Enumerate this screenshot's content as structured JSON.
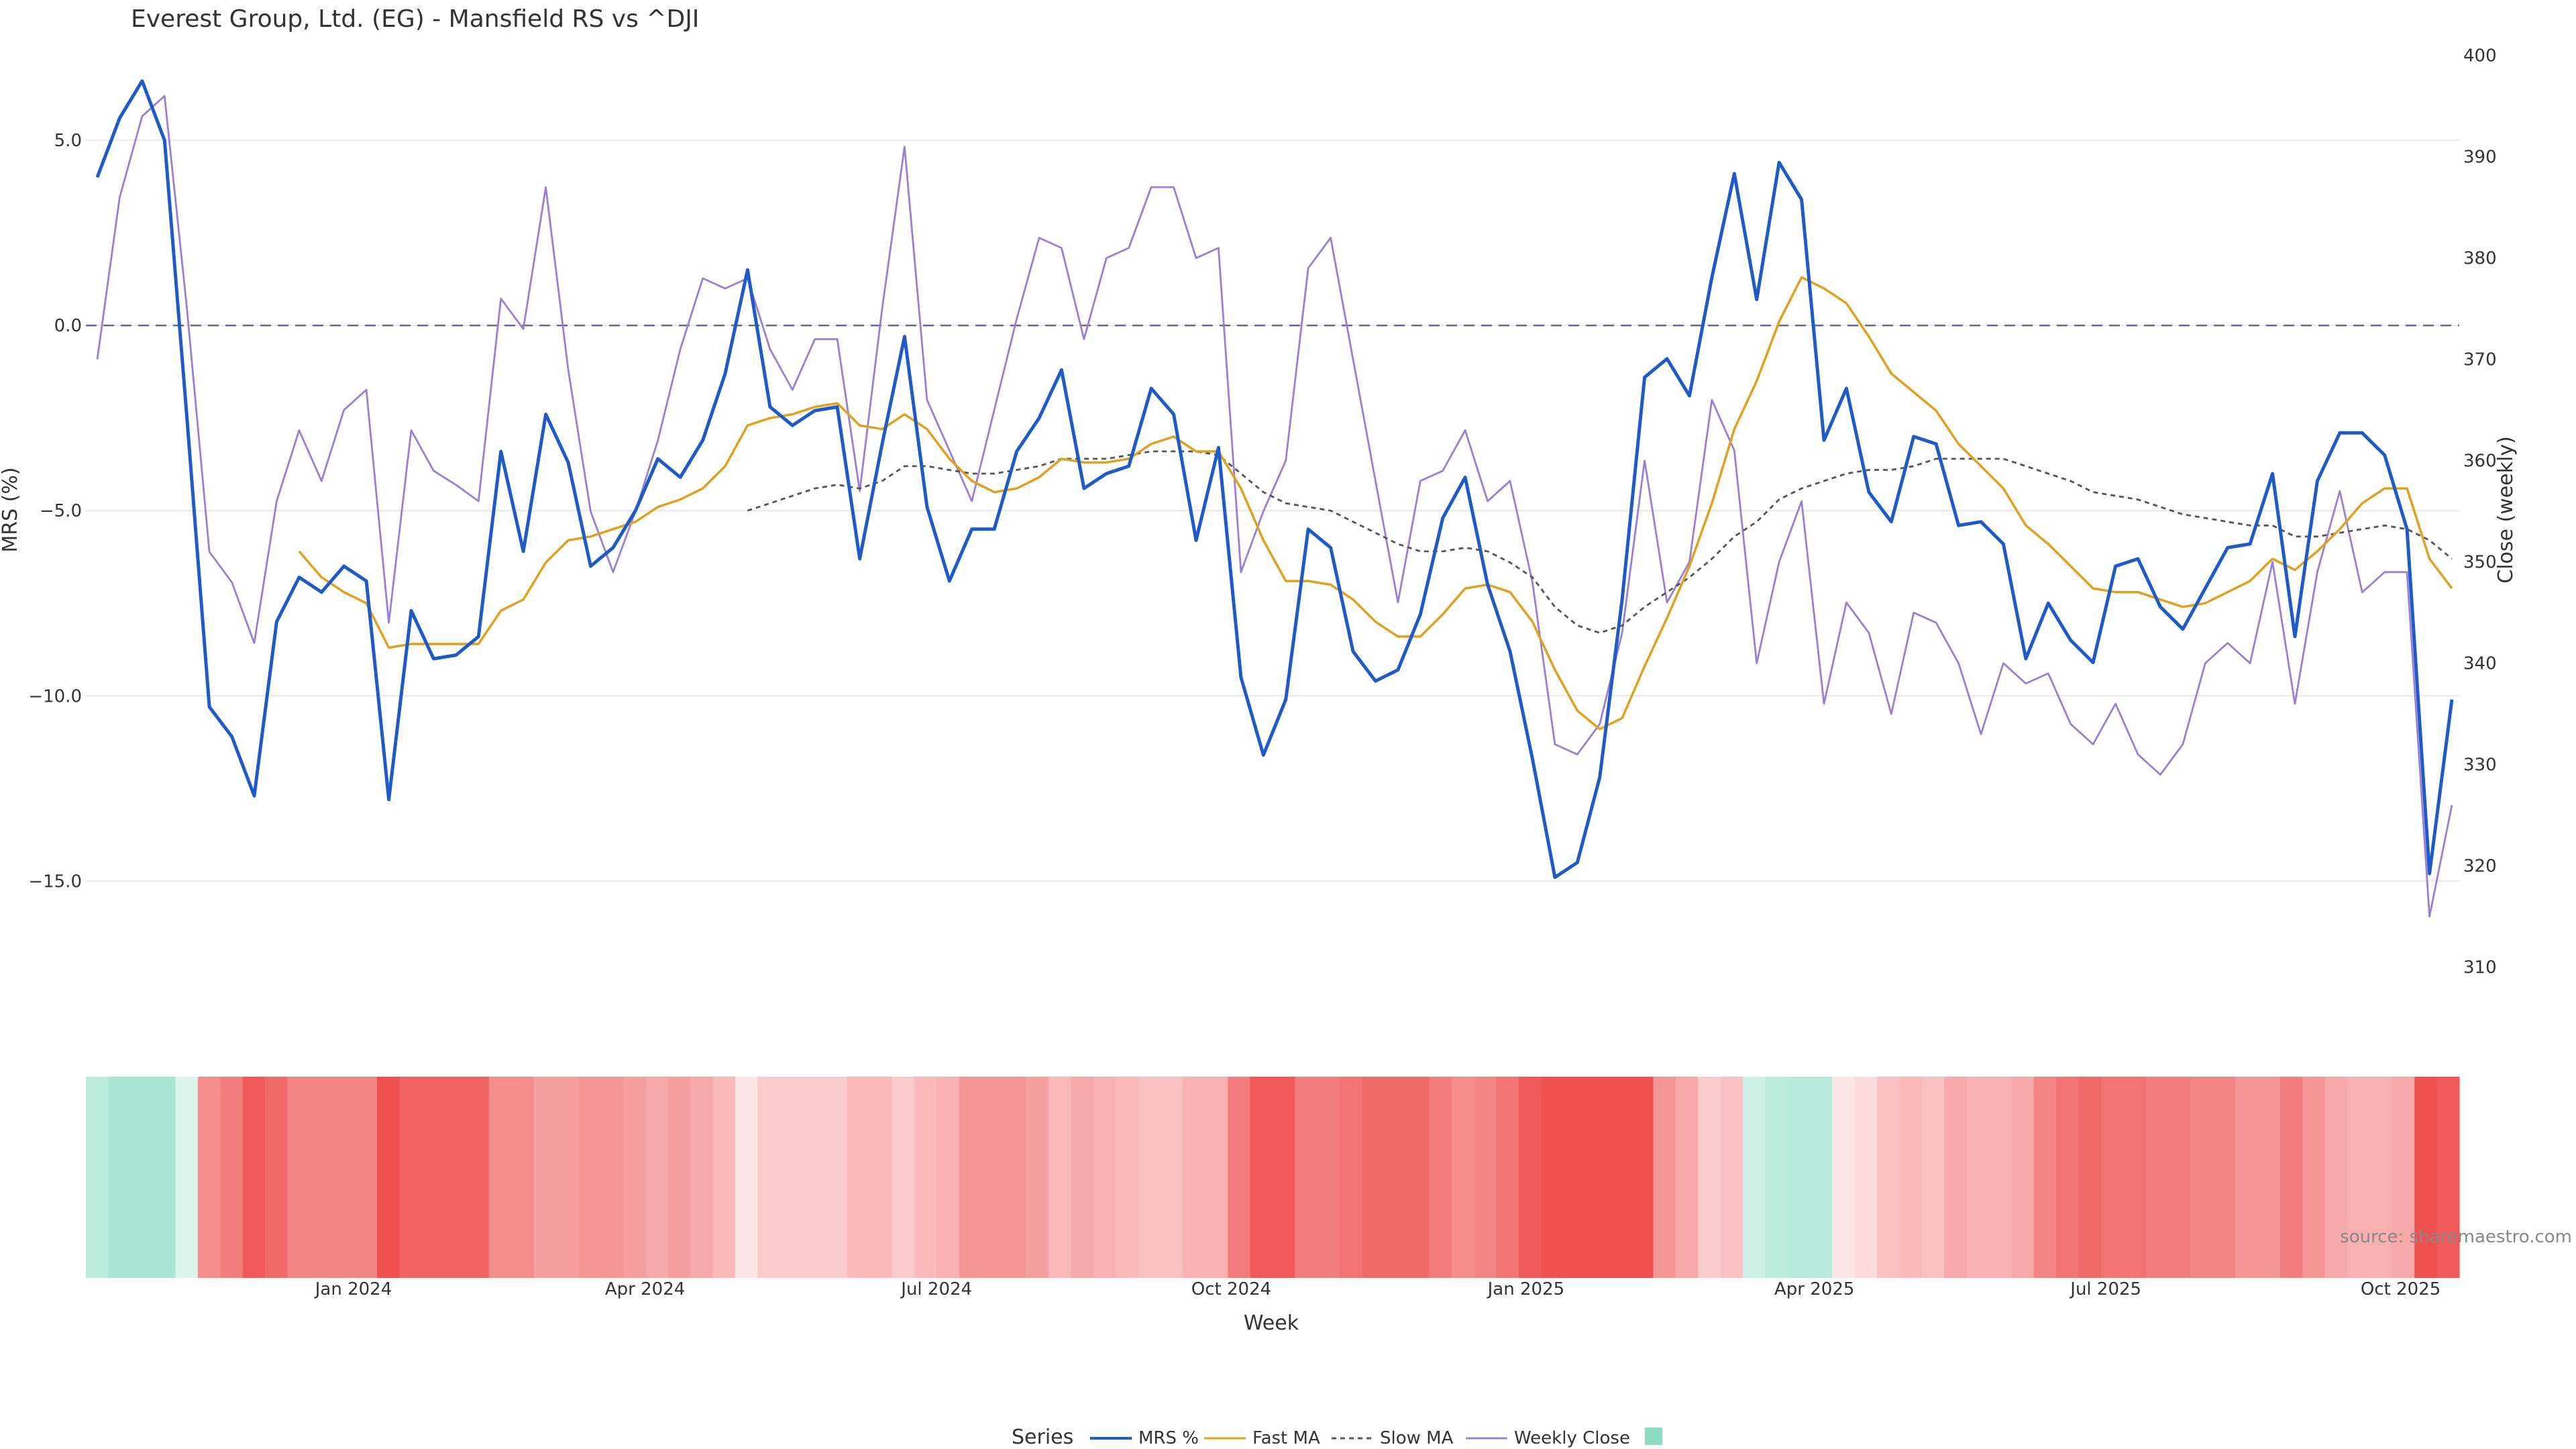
{
  "chart_data": {
    "type": "line",
    "title": "Everest Group, Ltd. (EG) - Mansfield RS vs ^DJI",
    "xlabel": "Week",
    "ylabel_left": "MRS (%)",
    "ylabel_right": "Close (weekly)",
    "source": "source: sharemaestro.com",
    "x_start": "2023-10-13",
    "x_step_days": 7,
    "x_ticks": [
      "Jan 2024",
      "Apr 2024",
      "Jul 2024",
      "Oct 2024",
      "Jan 2025",
      "Apr 2025",
      "Jul 2025",
      "Oct 2025"
    ],
    "y_left": {
      "ticks": [
        5.0,
        0.0,
        -5.0,
        -10.0,
        -15.0
      ],
      "labels": [
        "5.0",
        "0.0",
        "−5.0",
        "−10.0",
        "−15.0"
      ],
      "range": [
        -18.2,
        7.7
      ]
    },
    "y_right": {
      "ticks": [
        310,
        320,
        330,
        340,
        350,
        360,
        370,
        380,
        390,
        400
      ],
      "labels": [
        "310",
        "320",
        "330",
        "340",
        "350",
        "360",
        "370",
        "380",
        "390",
        "400"
      ],
      "range": [
        306.8,
        401.5
      ]
    },
    "zero_line": 0,
    "legend": {
      "title": "Series",
      "entries": [
        "MRS %",
        "Fast MA",
        "Slow MA",
        "Weekly Close"
      ],
      "position": "bottom-center"
    },
    "colors": {
      "mrs": "#1f5bc6",
      "fast": "#e0a020",
      "slow": "#555555",
      "close": "#9b7fd4",
      "zero": "#666688",
      "grid": "#e8e8e8",
      "heat_pos": "#6fd4b4",
      "heat_neg": "#ef5050"
    },
    "series": [
      {
        "name": "MRS %",
        "axis": "left",
        "values": [
          4.0,
          5.6,
          6.6,
          5.0,
          -2.5,
          -10.3,
          -11.1,
          -12.7,
          -8.0,
          -6.8,
          -7.2,
          -6.5,
          -6.9,
          -12.8,
          -7.7,
          -9.0,
          -8.9,
          -8.4,
          -3.4,
          -6.1,
          -2.4,
          -3.7,
          -6.5,
          -6.0,
          -5.0,
          -3.6,
          -4.1,
          -3.1,
          -1.3,
          1.5,
          -2.2,
          -2.7,
          -2.3,
          -2.2,
          -6.3,
          -3.2,
          -0.3,
          -4.9,
          -6.9,
          -5.5,
          -5.5,
          -3.4,
          -2.5,
          -1.2,
          -4.4,
          -4.0,
          -3.8,
          -1.7,
          -2.4,
          -5.8,
          -3.3,
          -9.5,
          -11.6,
          -10.1,
          -5.5,
          -6.0,
          -8.8,
          -9.6,
          -9.3,
          -7.8,
          -5.2,
          -4.1,
          -7.0,
          -8.8,
          -11.7,
          -14.9,
          -14.5,
          -12.2,
          -7.4,
          -1.4,
          -0.9,
          -1.9,
          1.3,
          4.1,
          0.7,
          4.4,
          3.4,
          -3.1,
          -1.7,
          -4.5,
          -5.3,
          -3.0,
          -3.2,
          -5.4,
          -5.3,
          -5.9,
          -9.0,
          -7.5,
          -8.5,
          -9.1,
          -6.5,
          -6.3,
          -7.6,
          -8.2,
          -7.1,
          -6.0,
          -5.9,
          -4.0,
          -8.4,
          -4.2,
          -2.9,
          -2.9,
          -3.5,
          -5.5,
          -14.8,
          -10.1
        ]
      },
      {
        "name": "Fast MA",
        "axis": "left",
        "values": [
          null,
          null,
          null,
          null,
          null,
          null,
          null,
          null,
          null,
          -6.1,
          -6.8,
          -7.2,
          -7.5,
          -8.7,
          -8.6,
          -8.6,
          -8.6,
          -8.6,
          -7.7,
          -7.4,
          -6.4,
          -5.8,
          -5.7,
          -5.5,
          -5.3,
          -4.9,
          -4.7,
          -4.4,
          -3.8,
          -2.7,
          -2.5,
          -2.4,
          -2.2,
          -2.1,
          -2.7,
          -2.8,
          -2.4,
          -2.8,
          -3.6,
          -4.2,
          -4.5,
          -4.4,
          -4.1,
          -3.6,
          -3.7,
          -3.7,
          -3.6,
          -3.2,
          -3.0,
          -3.4,
          -3.4,
          -4.4,
          -5.8,
          -6.9,
          -6.9,
          -7.0,
          -7.4,
          -8.0,
          -8.4,
          -8.4,
          -7.8,
          -7.1,
          -7.0,
          -7.2,
          -8.0,
          -9.3,
          -10.4,
          -10.9,
          -10.6,
          -9.2,
          -7.9,
          -6.5,
          -4.8,
          -2.8,
          -1.5,
          0.1,
          1.3,
          1.0,
          0.6,
          -0.3,
          -1.3,
          -1.8,
          -2.3,
          -3.2,
          -3.8,
          -4.4,
          -5.4,
          -5.9,
          -6.5,
          -7.1,
          -7.2,
          -7.2,
          -7.4,
          -7.6,
          -7.5,
          -7.2,
          -6.9,
          -6.3,
          -6.6,
          -6.1,
          -5.5,
          -4.8,
          -4.4,
          -4.4,
          -6.3,
          -7.1
        ]
      },
      {
        "name": "Slow MA",
        "axis": "left",
        "values": [
          null,
          null,
          null,
          null,
          null,
          null,
          null,
          null,
          null,
          null,
          null,
          null,
          null,
          null,
          null,
          null,
          null,
          null,
          null,
          null,
          null,
          null,
          null,
          null,
          null,
          null,
          null,
          null,
          null,
          -5.0,
          -4.8,
          -4.6,
          -4.4,
          -4.3,
          -4.4,
          -4.2,
          -3.8,
          -3.8,
          -3.9,
          -4.0,
          -4.0,
          -3.9,
          -3.8,
          -3.6,
          -3.6,
          -3.6,
          -3.5,
          -3.4,
          -3.4,
          -3.4,
          -3.5,
          -4.0,
          -4.5,
          -4.8,
          -4.9,
          -5.0,
          -5.3,
          -5.6,
          -5.9,
          -6.1,
          -6.1,
          -6.0,
          -6.1,
          -6.4,
          -6.8,
          -7.6,
          -8.1,
          -8.3,
          -8.1,
          -7.6,
          -7.2,
          -6.8,
          -6.3,
          -5.7,
          -5.3,
          -4.7,
          -4.4,
          -4.2,
          -4.0,
          -3.9,
          -3.9,
          -3.8,
          -3.6,
          -3.6,
          -3.6,
          -3.6,
          -3.8,
          -4.0,
          -4.2,
          -4.5,
          -4.6,
          -4.7,
          -4.9,
          -5.1,
          -5.2,
          -5.3,
          -5.4,
          -5.4,
          -5.7,
          -5.7,
          -5.6,
          -5.5,
          -5.4,
          -5.5,
          -5.8,
          -6.3
        ]
      },
      {
        "name": "Weekly Close",
        "axis": "right",
        "values": [
          370.0,
          386.0,
          394.0,
          396.0,
          375.0,
          351.0,
          348.0,
          342.0,
          356.0,
          363.0,
          358.0,
          365.0,
          367.0,
          344.0,
          363.0,
          359.0,
          357.6,
          356.0,
          376.0,
          373.0,
          387.0,
          369.0,
          355.0,
          349.0,
          355.0,
          362.0,
          371.0,
          378.0,
          377.0,
          378.0,
          371.0,
          367.0,
          372.0,
          372.0,
          357.0,
          375.0,
          391.0,
          366.0,
          361.0,
          356.0,
          365.0,
          374.0,
          382.0,
          381.0,
          372.0,
          380.0,
          381.0,
          387.0,
          387.0,
          380.0,
          381.0,
          349.0,
          355.0,
          360.0,
          379.0,
          382.0,
          370.0,
          358.0,
          346.0,
          358.0,
          359.0,
          363.0,
          356.0,
          358.0,
          348.0,
          332.0,
          331.0,
          334.0,
          343.0,
          360.0,
          346.0,
          350.0,
          366.0,
          361.0,
          340.0,
          350.0,
          356.0,
          336.0,
          346.0,
          343.0,
          335.0,
          345.0,
          344.0,
          340.0,
          333.0,
          340.0,
          338.0,
          339.0,
          334.0,
          332.0,
          336.0,
          331.0,
          329.0,
          332.0,
          340.0,
          342.0,
          340.0,
          350.0,
          336.0,
          349.0,
          357.0,
          347.0,
          349.0,
          349.0,
          315.0,
          326.0
        ]
      }
    ],
    "heatmap_row": [
      0.45,
      0.6,
      0.6,
      0.6,
      0.25,
      -0.65,
      -0.75,
      -0.95,
      -0.85,
      -0.7,
      -0.7,
      -0.7,
      -0.7,
      -1.0,
      -0.9,
      -0.9,
      -0.9,
      -0.9,
      -0.65,
      -0.65,
      -0.55,
      -0.55,
      -0.6,
      -0.6,
      -0.55,
      -0.5,
      -0.55,
      -0.5,
      -0.4,
      -0.15,
      -0.3,
      -0.3,
      -0.3,
      -0.3,
      -0.4,
      -0.4,
      -0.3,
      -0.4,
      -0.45,
      -0.6,
      -0.6,
      -0.6,
      -0.55,
      -0.4,
      -0.5,
      -0.45,
      -0.4,
      -0.35,
      -0.35,
      -0.45,
      -0.45,
      -0.75,
      -0.95,
      -0.95,
      -0.75,
      -0.75,
      -0.8,
      -0.85,
      -0.85,
      -0.85,
      -0.75,
      -0.65,
      -0.7,
      -0.8,
      -0.95,
      -1.0,
      -1.0,
      -1.0,
      -1.0,
      -1.0,
      -0.6,
      -0.5,
      -0.3,
      -0.35,
      0.35,
      0.45,
      0.5,
      0.5,
      -0.15,
      -0.2,
      -0.35,
      -0.4,
      -0.35,
      -0.5,
      -0.45,
      -0.45,
      -0.5,
      -0.7,
      -0.8,
      -0.85,
      -0.8,
      -0.8,
      -0.75,
      -0.75,
      -0.7,
      -0.7,
      -0.6,
      -0.6,
      -0.75,
      -0.6,
      -0.5,
      -0.45,
      -0.45,
      -0.5,
      -1.0,
      -0.95
    ]
  }
}
